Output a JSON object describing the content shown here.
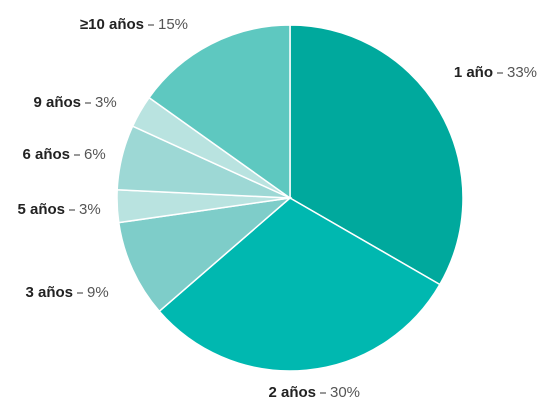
{
  "chart_data": {
    "type": "pie",
    "categories": [
      "1 año",
      "2 años",
      "3 años",
      "5 años",
      "6 años",
      "9 años",
      "≥10 años"
    ],
    "values": [
      33,
      30,
      9,
      3,
      6,
      3,
      15
    ],
    "value_labels": [
      "33%",
      "30%",
      "9%",
      "3%",
      "6%",
      "3%",
      "15%"
    ],
    "colors": [
      "#00a99d",
      "#00b8b0",
      "#7ecdc9",
      "#b9e3e0",
      "#9dd8d5",
      "#b9e3e0",
      "#5ec8c0"
    ]
  }
}
